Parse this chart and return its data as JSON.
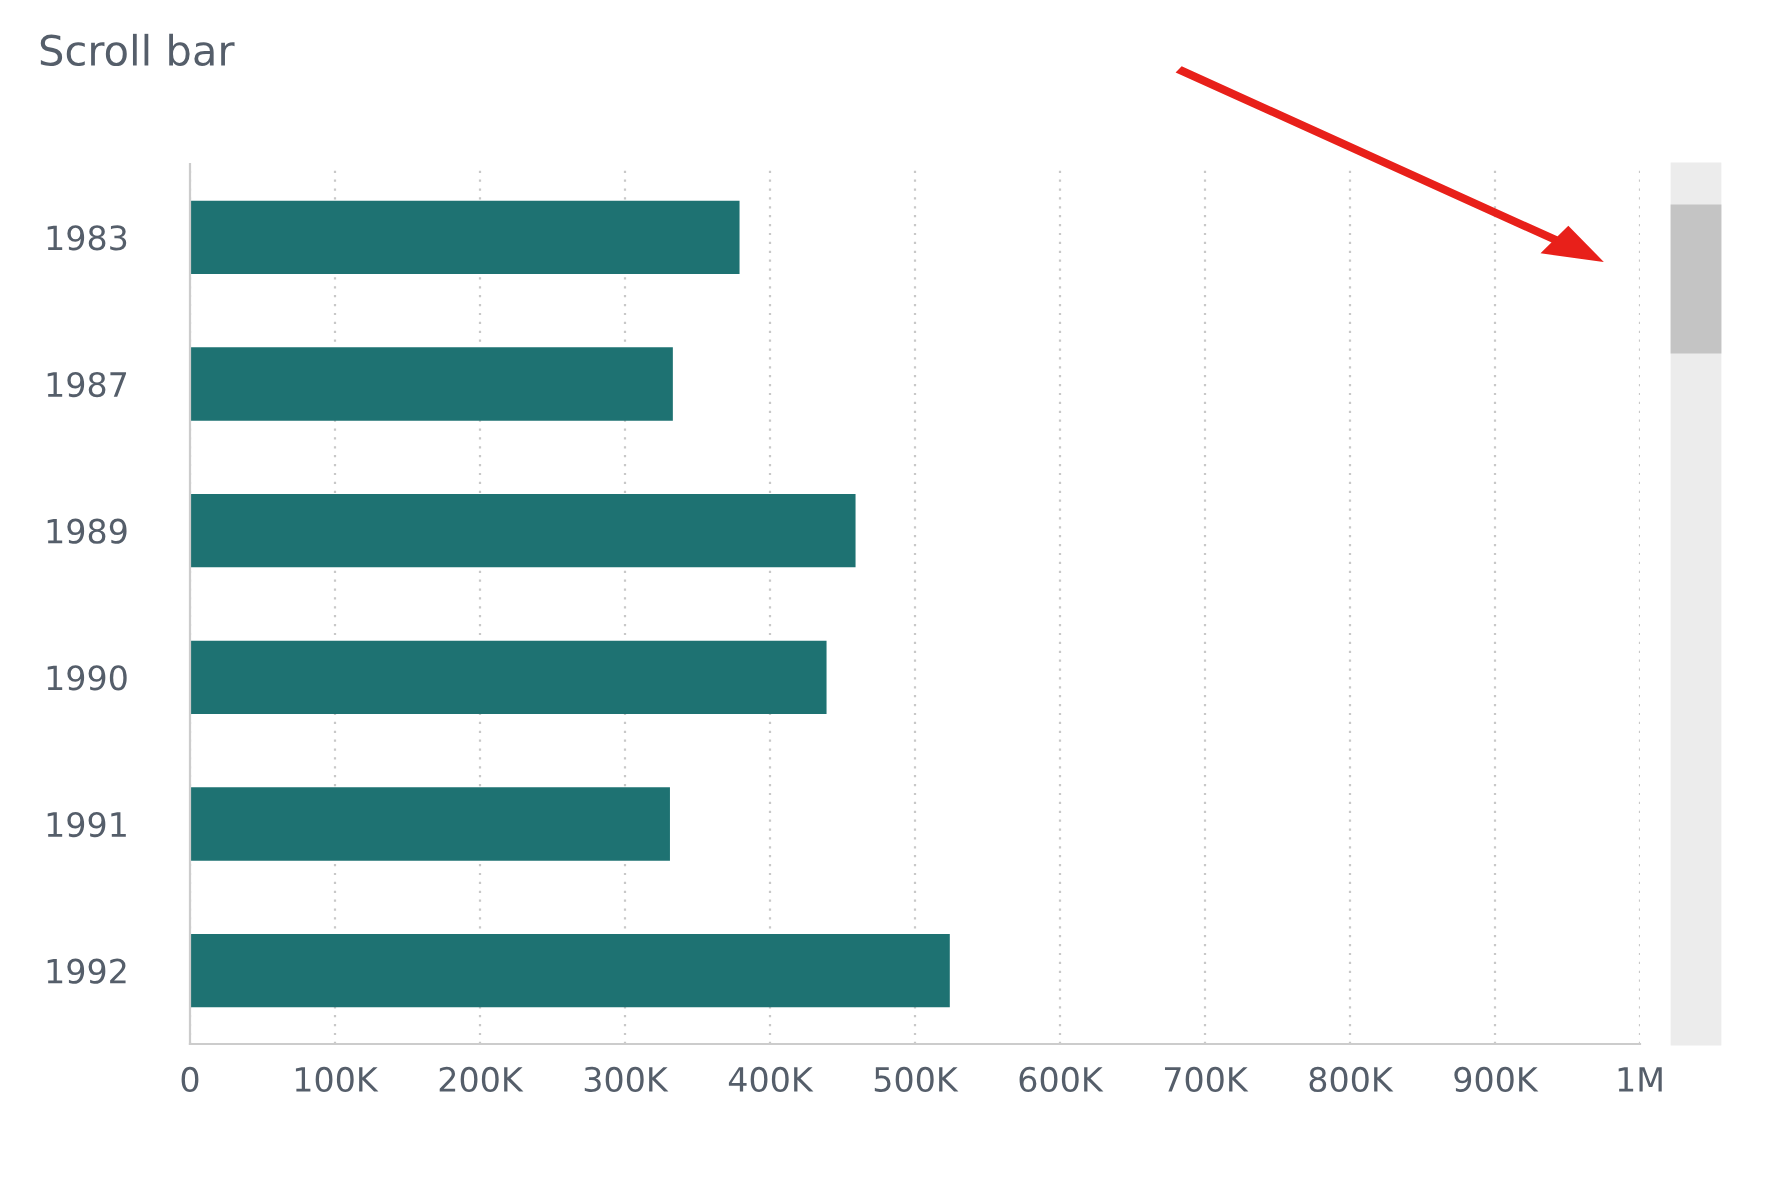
{
  "chart_data": {
    "type": "bar",
    "orientation": "horizontal",
    "title": "Scroll bar",
    "categories": [
      "1983",
      "1987",
      "1989",
      "1990",
      "1991",
      "1992"
    ],
    "values": [
      379000,
      333000,
      459000,
      439000,
      331000,
      524000
    ],
    "color": "#1e7272",
    "xlim": [
      0,
      1000000
    ],
    "xticks": [
      0,
      {
        "value": 100000,
        "label": "100K"
      },
      {
        "value": 200000,
        "label": "200K"
      },
      {
        "value": 300000,
        "label": "300K"
      },
      {
        "value": 400000,
        "label": "400K"
      },
      {
        "value": 500000,
        "label": "500K"
      },
      {
        "value": 600000,
        "label": "600K"
      },
      {
        "value": 700000,
        "label": "700K"
      },
      {
        "value": 800000,
        "label": "800K"
      },
      {
        "value": 900000,
        "label": "900K"
      },
      {
        "value": 1000000,
        "label": "1M"
      }
    ],
    "grid": "x",
    "legend": false
  }
}
